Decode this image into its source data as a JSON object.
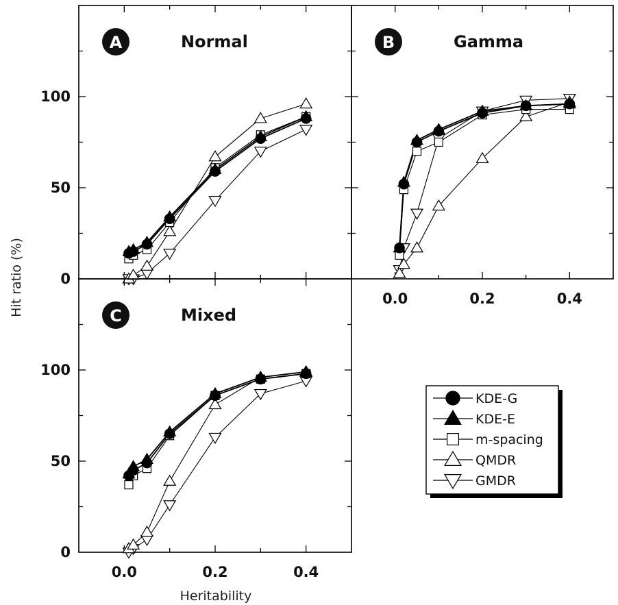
{
  "chart_data": {
    "type": "line",
    "ylabel": "Hit ratio (%)",
    "xlabel": "Heritability",
    "xlim": [
      -0.1,
      0.5
    ],
    "ylim": [
      0,
      150
    ],
    "x_ticks": [
      "0.0",
      "0.2",
      "0.4"
    ],
    "y_ticks": [
      "0",
      "50",
      "100"
    ],
    "x": [
      0.01,
      0.02,
      0.05,
      0.1,
      0.2,
      0.3,
      0.4
    ],
    "legend": {
      "placement": "bottom-right",
      "entries": [
        "KDE-G",
        "KDE-E",
        "m-spacing",
        "QMDR",
        "GMDR"
      ]
    },
    "panels": [
      {
        "id": "A",
        "title": "Normal",
        "series": [
          {
            "name": "KDE-G",
            "values": [
              14,
              15,
              19,
              33,
              59,
              77,
              88
            ]
          },
          {
            "name": "KDE-E",
            "values": [
              15,
              16,
              20,
              34,
              60,
              78,
              89
            ]
          },
          {
            "name": "m-spacing",
            "values": [
              11,
              13,
              16,
              31,
              61,
              79,
              89
            ]
          },
          {
            "name": "QMDR",
            "values": [
              0,
              2,
              7,
              26,
              67,
              88,
              96
            ]
          },
          {
            "name": "GMDR",
            "values": [
              0,
              0,
              3,
              14,
              43,
              70,
              82
            ]
          }
        ]
      },
      {
        "id": "B",
        "title": "Gamma",
        "series": [
          {
            "name": "KDE-G",
            "values": [
              17,
              52,
              75,
              81,
              91,
              95,
              96
            ]
          },
          {
            "name": "KDE-E",
            "values": [
              17,
              53,
              76,
              82,
              92,
              95,
              96
            ]
          },
          {
            "name": "m-spacing",
            "values": [
              13,
              49,
              70,
              75,
              90,
              93,
              93
            ]
          },
          {
            "name": "QMDR",
            "values": [
              3,
              8,
              17,
              40,
              66,
              89,
              97
            ]
          },
          {
            "name": "GMDR",
            "values": [
              5,
              17,
              36,
              77,
              92,
              98,
              99
            ]
          }
        ]
      },
      {
        "id": "C",
        "title": "Mixed",
        "series": [
          {
            "name": "KDE-G",
            "values": [
              42,
              45,
              49,
              65,
              86,
              95,
              98
            ]
          },
          {
            "name": "KDE-E",
            "values": [
              43,
              47,
              51,
              66,
              87,
              96,
              99
            ]
          },
          {
            "name": "m-spacing",
            "values": [
              37,
              42,
              46,
              64,
              86,
              95,
              98
            ]
          },
          {
            "name": "QMDR",
            "values": [
              2,
              4,
              11,
              39,
              81,
              96,
              99
            ]
          },
          {
            "name": "GMDR",
            "values": [
              0,
              2,
              7,
              26,
              63,
              87,
              94
            ]
          }
        ]
      }
    ]
  }
}
